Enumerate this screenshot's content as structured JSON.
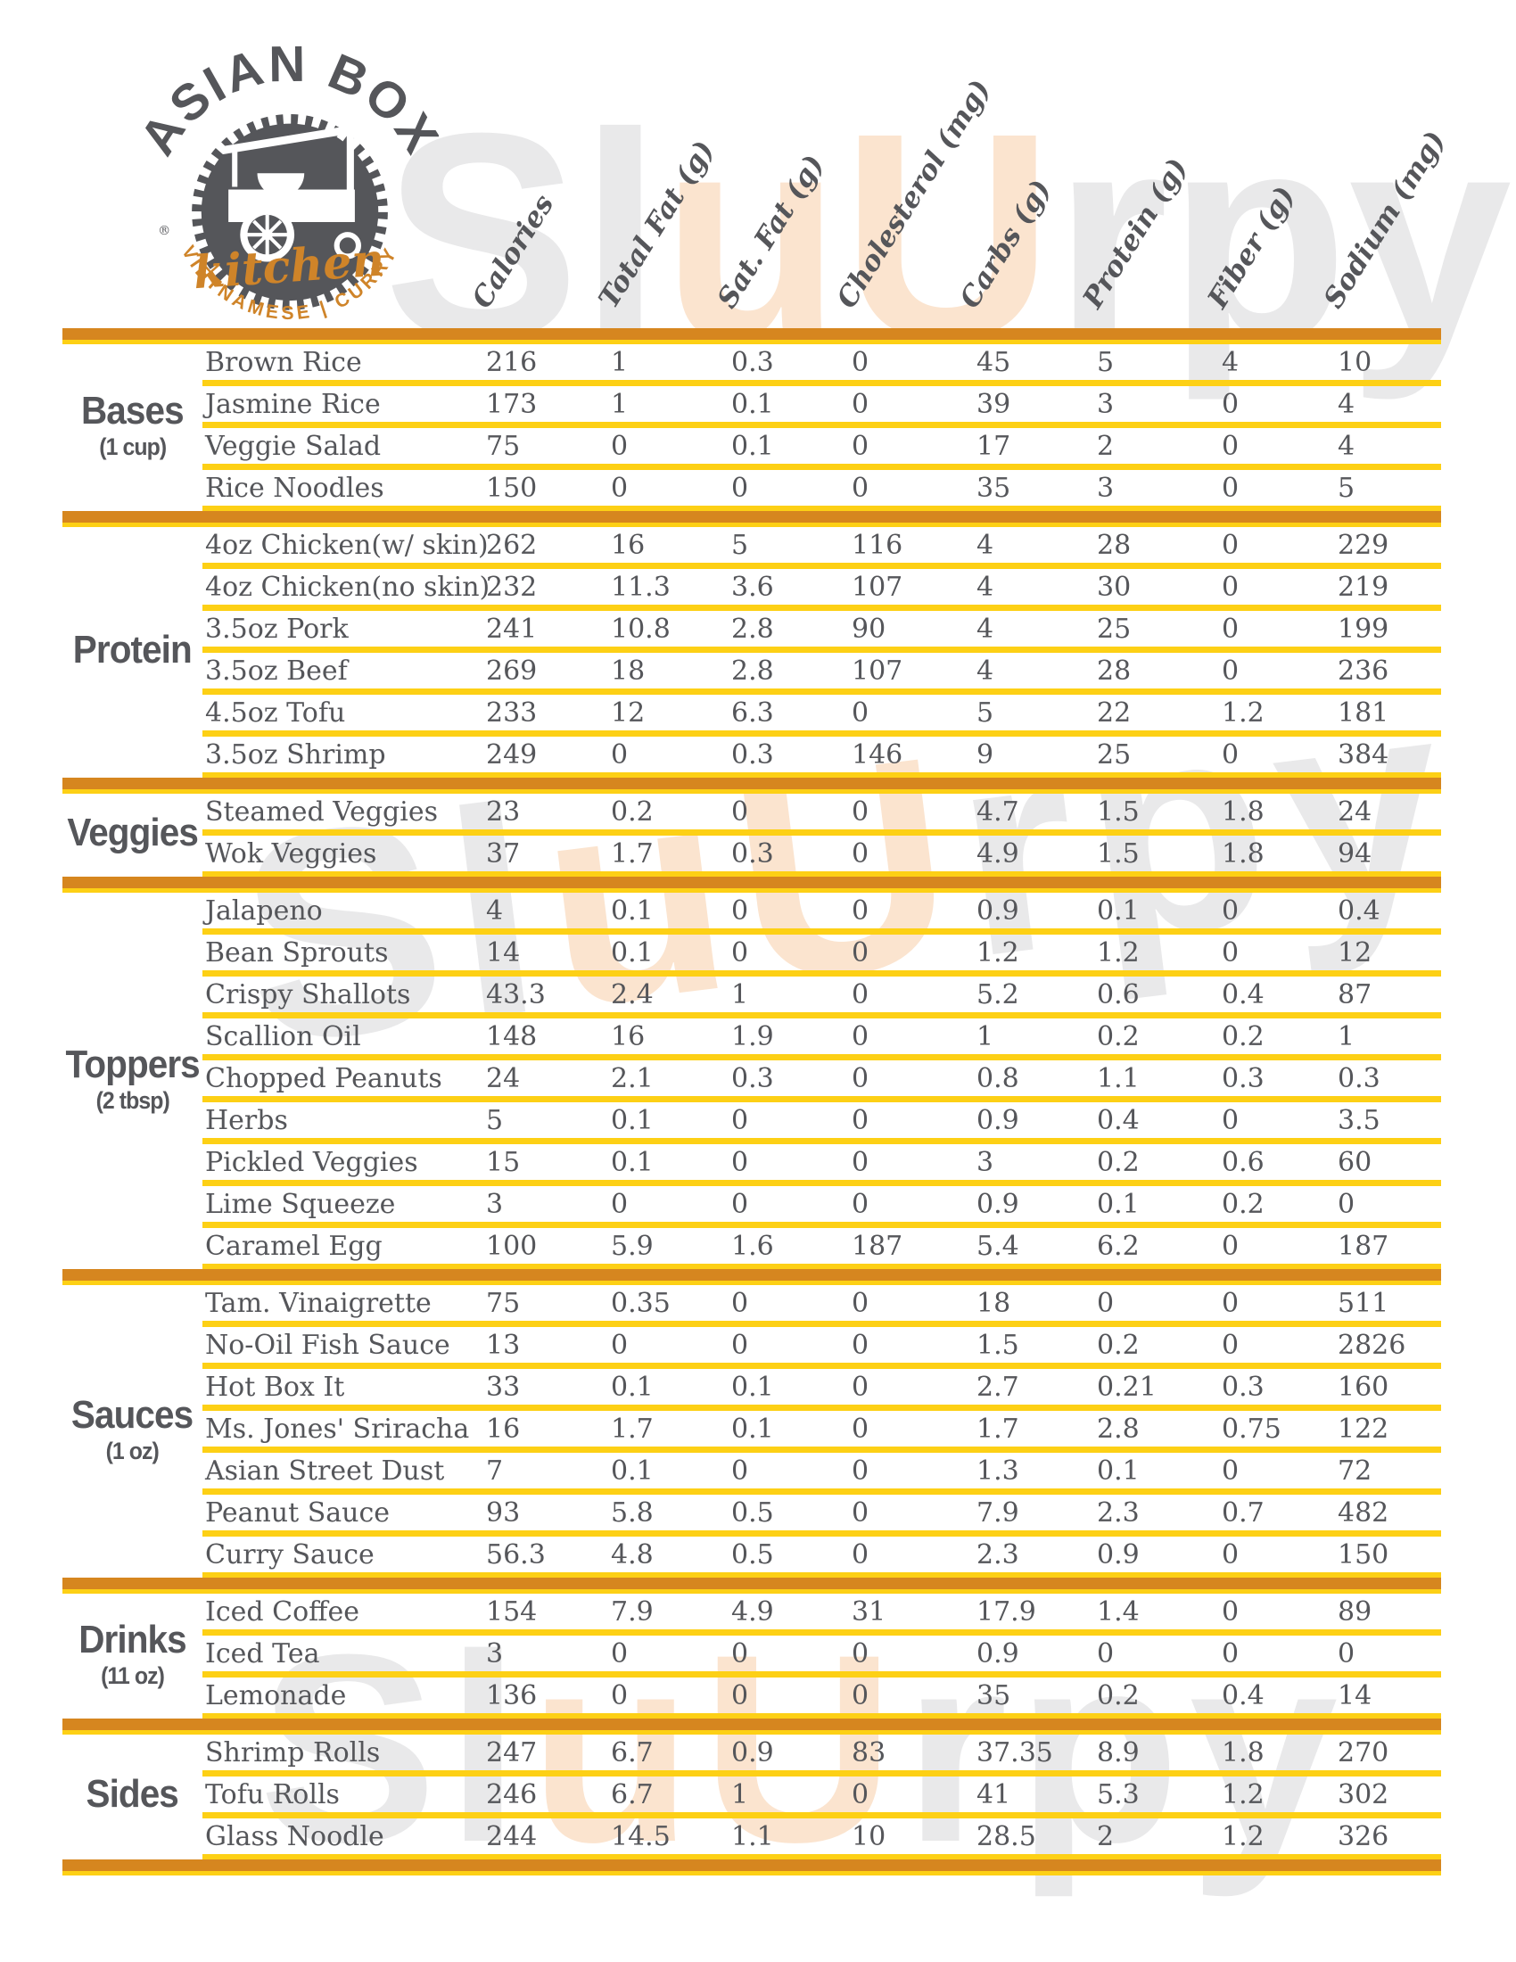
{
  "logo": {
    "title_arc": "ASIAN BOX",
    "script": "kitchen",
    "tagline_arc": "VIETNAMESE | CURRY",
    "registered_mark": "®"
  },
  "columns": [
    "Calories",
    "Total Fat (g)",
    "Sat. Fat (g)",
    "Cholesterol (mg)",
    "Carbs (g)",
    "Protein (g)",
    "Fiber (g)",
    "Sodium (mg)"
  ],
  "sections": [
    {
      "label": "Bases",
      "sublabel": "(1 cup)",
      "rows": [
        {
          "name": "Brown Rice",
          "values": [
            "216",
            "1",
            "0.3",
            "0",
            "45",
            "5",
            "4",
            "10"
          ]
        },
        {
          "name": "Jasmine Rice",
          "values": [
            "173",
            "1",
            "0.1",
            "0",
            "39",
            "3",
            "0",
            "4"
          ]
        },
        {
          "name": "Veggie Salad",
          "values": [
            "75",
            "0",
            "0.1",
            "0",
            "17",
            "2",
            "0",
            "4"
          ]
        },
        {
          "name": "Rice Noodles",
          "values": [
            "150",
            "0",
            "0",
            "0",
            "35",
            "3",
            "0",
            "5"
          ]
        }
      ]
    },
    {
      "label": "Protein",
      "sublabel": "",
      "rows": [
        {
          "name": "4oz Chicken(w/ skin)",
          "values": [
            "262",
            "16",
            "5",
            "116",
            "4",
            "28",
            "0",
            "229"
          ]
        },
        {
          "name": "4oz Chicken(no skin)",
          "values": [
            "232",
            "11.3",
            "3.6",
            "107",
            "4",
            "30",
            "0",
            "219"
          ]
        },
        {
          "name": "3.5oz Pork",
          "values": [
            "241",
            "10.8",
            "2.8",
            "90",
            "4",
            "25",
            "0",
            "199"
          ]
        },
        {
          "name": "3.5oz Beef",
          "values": [
            "269",
            "18",
            "2.8",
            "107",
            "4",
            "28",
            "0",
            "236"
          ]
        },
        {
          "name": "4.5oz Tofu",
          "values": [
            "233",
            "12",
            "6.3",
            "0",
            "5",
            "22",
            "1.2",
            "181"
          ]
        },
        {
          "name": "3.5oz Shrimp",
          "values": [
            "249",
            "0",
            "0.3",
            "146",
            "9",
            "25",
            "0",
            "384"
          ]
        }
      ]
    },
    {
      "label": "Veggies",
      "sublabel": "",
      "rows": [
        {
          "name": "Steamed Veggies",
          "values": [
            "23",
            "0.2",
            "0",
            "0",
            "4.7",
            "1.5",
            "1.8",
            "24"
          ]
        },
        {
          "name": "Wok Veggies",
          "values": [
            "37",
            "1.7",
            "0.3",
            "0",
            "4.9",
            "1.5",
            "1.8",
            "94"
          ]
        }
      ]
    },
    {
      "label": "Toppers",
      "sublabel": "(2 tbsp)",
      "rows": [
        {
          "name": "Jalapeno",
          "values": [
            "4",
            "0.1",
            "0",
            "0",
            "0.9",
            "0.1",
            "0",
            "0.4"
          ]
        },
        {
          "name": "Bean Sprouts",
          "values": [
            "14",
            "0.1",
            "0",
            "0",
            "1.2",
            "1.2",
            "0",
            "12"
          ]
        },
        {
          "name": "Crispy Shallots",
          "values": [
            "43.3",
            "2.4",
            "1",
            "0",
            "5.2",
            "0.6",
            "0.4",
            "87"
          ]
        },
        {
          "name": "Scallion Oil",
          "values": [
            "148",
            "16",
            "1.9",
            "0",
            "1",
            "0.2",
            "0.2",
            "1"
          ]
        },
        {
          "name": "Chopped Peanuts",
          "values": [
            "24",
            "2.1",
            "0.3",
            "0",
            "0.8",
            "1.1",
            "0.3",
            "0.3"
          ]
        },
        {
          "name": "Herbs",
          "values": [
            "5",
            "0.1",
            "0",
            "0",
            "0.9",
            "0.4",
            "0",
            "3.5"
          ]
        },
        {
          "name": "Pickled Veggies",
          "values": [
            "15",
            "0.1",
            "0",
            "0",
            "3",
            "0.2",
            "0.6",
            "60"
          ]
        },
        {
          "name": "Lime Squeeze",
          "values": [
            "3",
            "0",
            "0",
            "0",
            "0.9",
            "0.1",
            "0.2",
            "0"
          ]
        },
        {
          "name": "Caramel Egg",
          "values": [
            "100",
            "5.9",
            "1.6",
            "187",
            "5.4",
            "6.2",
            "0",
            "187"
          ]
        }
      ]
    },
    {
      "label": "Sauces",
      "sublabel": "(1 oz)",
      "rows": [
        {
          "name": "Tam. Vinaigrette",
          "values": [
            "75",
            "0.35",
            "0",
            "0",
            "18",
            "0",
            "0",
            "511"
          ]
        },
        {
          "name": "No-Oil Fish Sauce",
          "values": [
            "13",
            "0",
            "0",
            "0",
            "1.5",
            "0.2",
            "0",
            "2826"
          ]
        },
        {
          "name": "Hot Box It",
          "values": [
            "33",
            "0.1",
            "0.1",
            "0",
            "2.7",
            "0.21",
            "0.3",
            "160"
          ]
        },
        {
          "name": "Ms. Jones' Sriracha",
          "values": [
            "16",
            "1.7",
            "0.1",
            "0",
            "1.7",
            "2.8",
            "0.75",
            "122"
          ]
        },
        {
          "name": "Asian Street Dust",
          "values": [
            "7",
            "0.1",
            "0",
            "0",
            "1.3",
            "0.1",
            "0",
            "72"
          ]
        },
        {
          "name": "Peanut Sauce",
          "values": [
            "93",
            "5.8",
            "0.5",
            "0",
            "7.9",
            "2.3",
            "0.7",
            "482"
          ]
        },
        {
          "name": "Curry Sauce",
          "values": [
            "56.3",
            "4.8",
            "0.5",
            "0",
            "2.3",
            "0.9",
            "0",
            "150"
          ]
        }
      ]
    },
    {
      "label": "Drinks",
      "sublabel": "(11 oz)",
      "rows": [
        {
          "name": "Iced Coffee",
          "values": [
            "154",
            "7.9",
            "4.9",
            "31",
            "17.9",
            "1.4",
            "0",
            "89"
          ]
        },
        {
          "name": "Iced Tea",
          "values": [
            "3",
            "0",
            "0",
            "0",
            "0.9",
            "0",
            "0",
            "0"
          ]
        },
        {
          "name": "Lemonade",
          "values": [
            "136",
            "0",
            "0",
            "0",
            "35",
            "0.2",
            "0.4",
            "14"
          ]
        }
      ]
    },
    {
      "label": "Sides",
      "sublabel": "",
      "rows": [
        {
          "name": "Shrimp Rolls",
          "values": [
            "247",
            "6.7",
            "0.9",
            "83",
            "37.35",
            "8.9",
            "1.8",
            "270"
          ]
        },
        {
          "name": "Tofu  Rolls",
          "values": [
            "246",
            "6.7",
            "1",
            "0",
            "41",
            "5.3",
            "1.2",
            "302"
          ]
        },
        {
          "name": "Glass Noodle",
          "values": [
            "244",
            "14.5",
            "1.1",
            "10",
            "28.5",
            "2",
            "1.2",
            "326"
          ]
        }
      ]
    }
  ],
  "watermark": {
    "text": "SluUrpy"
  },
  "colors": {
    "ink": "#55565a",
    "orange_bar": "#d6861f",
    "yellow_line": "#fdd015",
    "logo_orange": "#cf8429",
    "watermark_gray": "#e9e9ea",
    "watermark_peach": "#fbe4cf"
  }
}
